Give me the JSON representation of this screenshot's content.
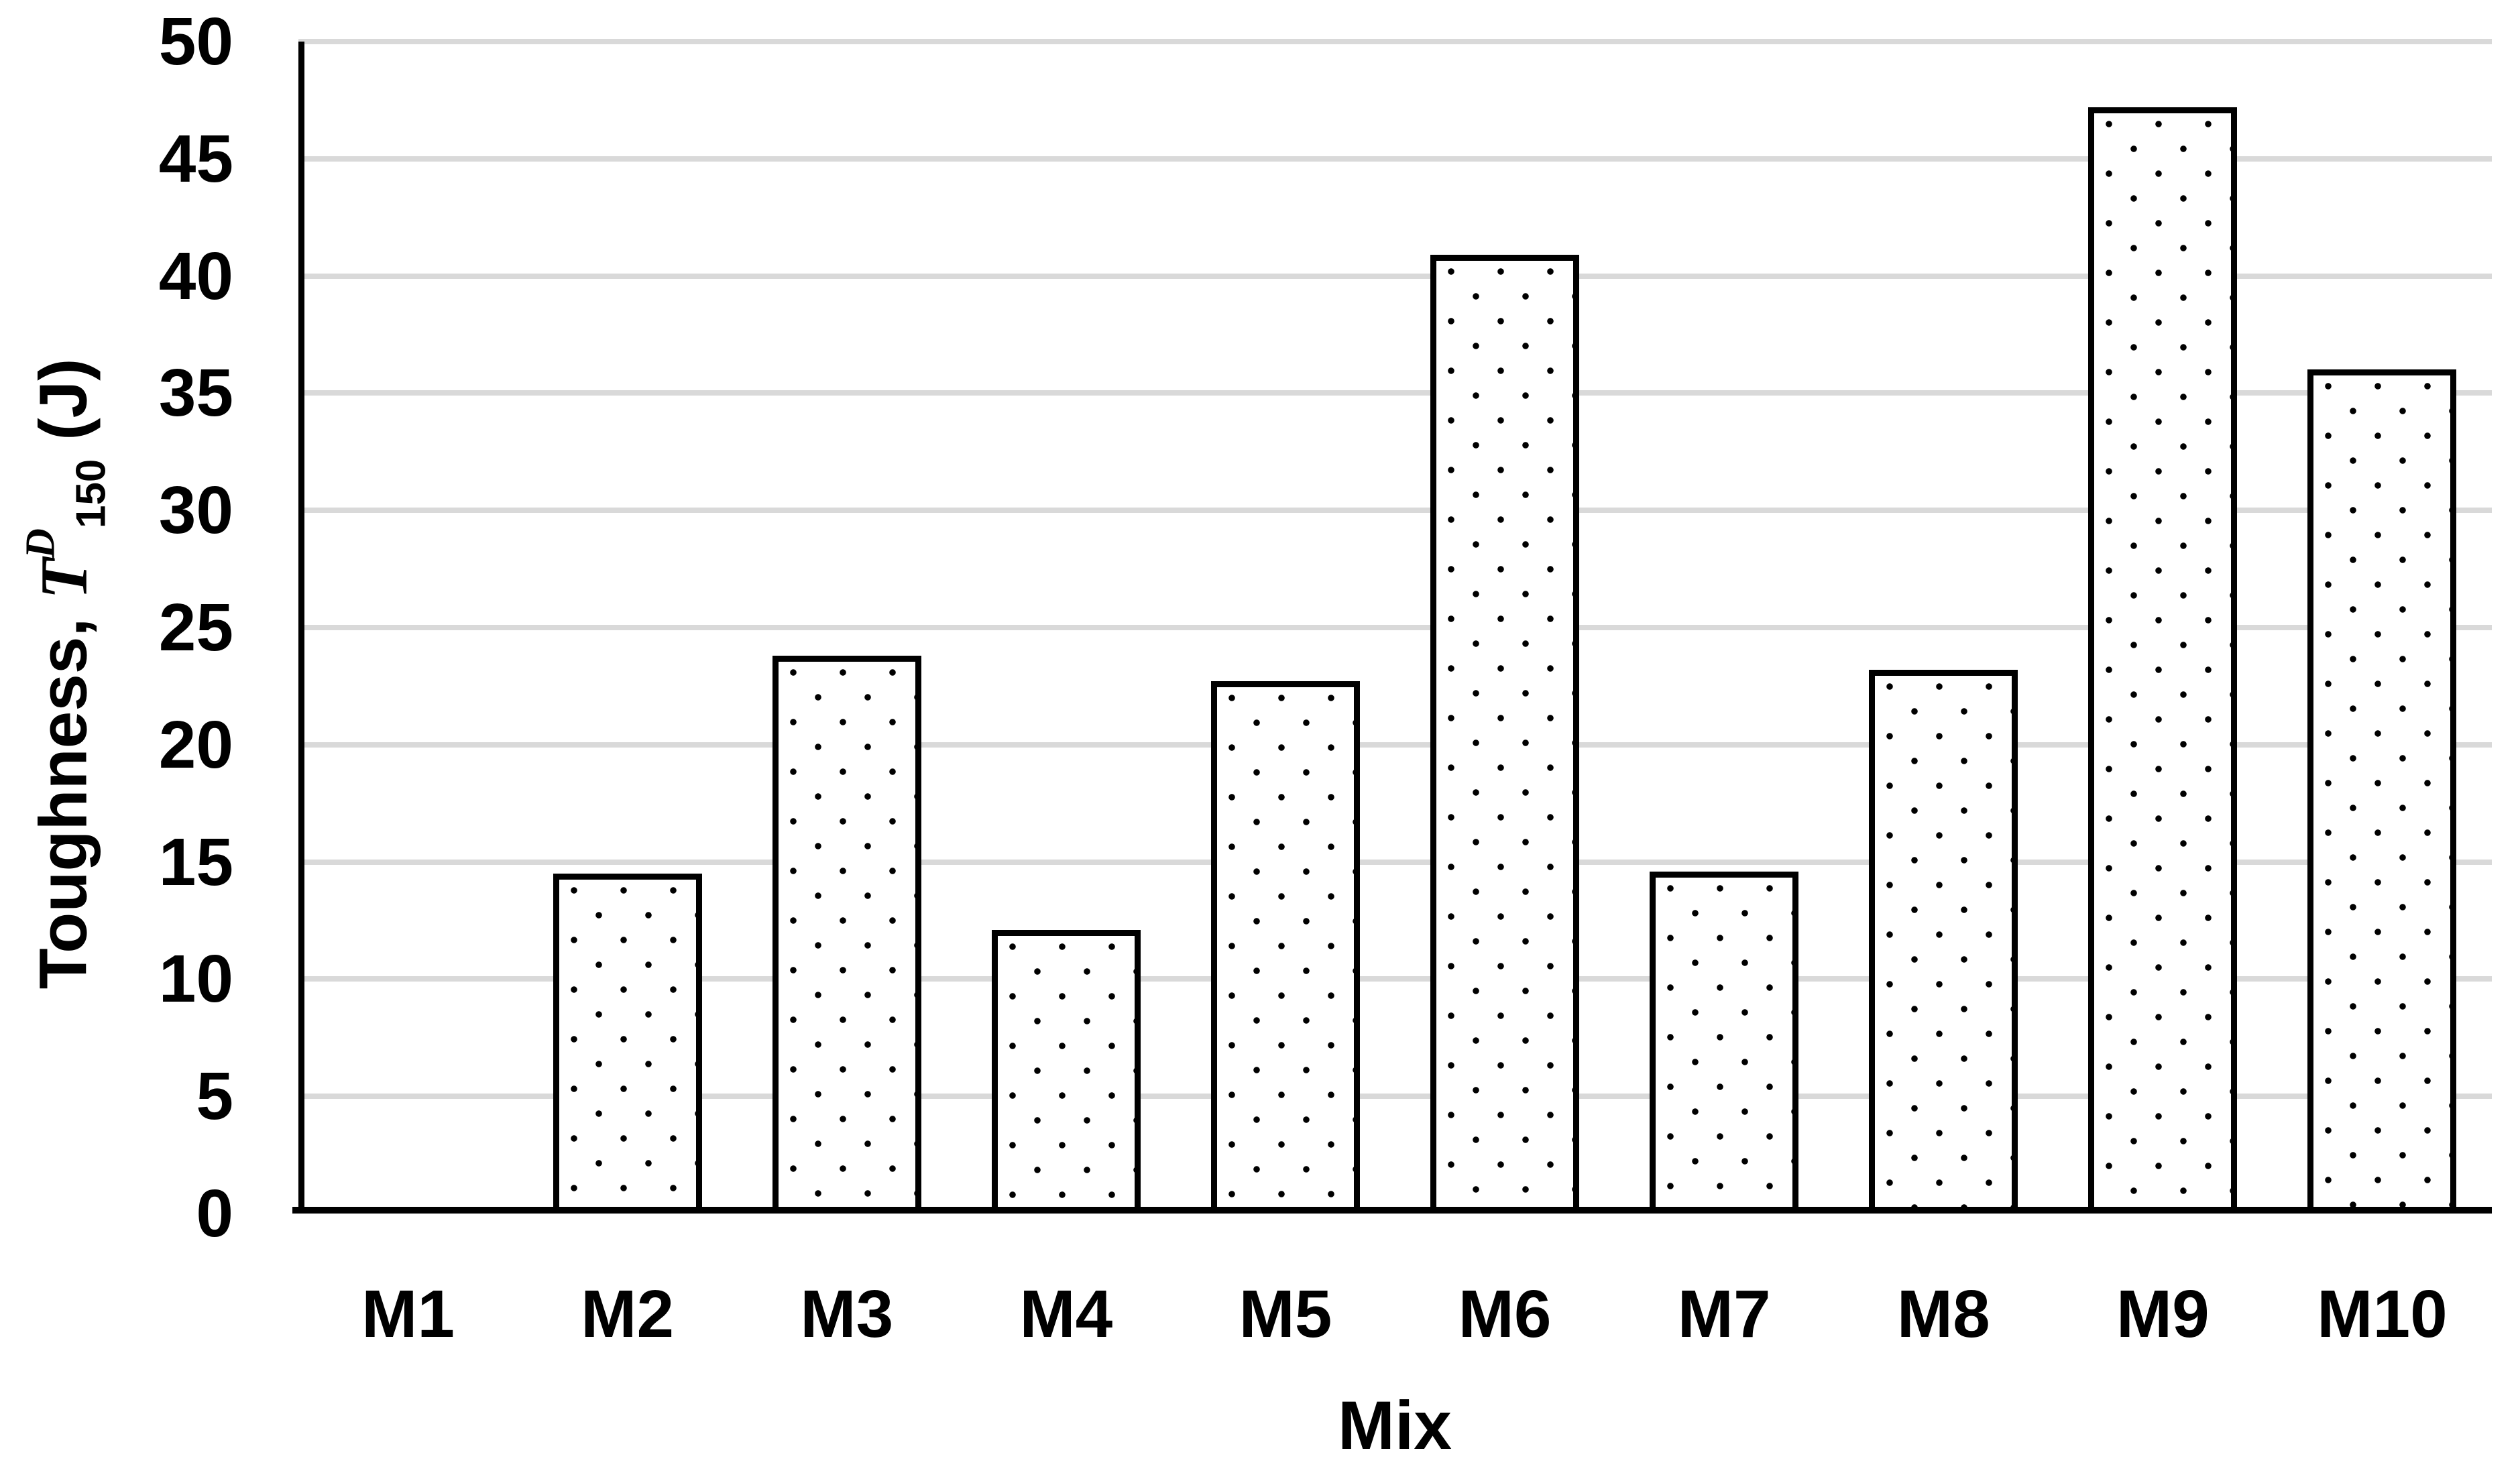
{
  "chart_data": {
    "type": "bar",
    "title": "",
    "categories": [
      "M1",
      "M2",
      "M3",
      "M4",
      "M5",
      "M6",
      "M7",
      "M8",
      "M9",
      "M10"
    ],
    "values": [
      0,
      14.5,
      23.8,
      12.1,
      22.7,
      40.9,
      14.6,
      23.2,
      47.2,
      36
    ],
    "xlabel": "Mix",
    "ylabel": "Toughness, T^D_150 (J)",
    "ylabel_parts": {
      "prefix": "Toughness, ",
      "symbol": "T",
      "superscript": "D",
      "subscript": "150",
      "suffix": " (J)"
    },
    "ylim": [
      0,
      50
    ],
    "yticks": [
      0,
      5,
      10,
      15,
      20,
      25,
      30,
      35,
      40,
      45,
      50
    ],
    "grid": "horizontal",
    "legend": "none",
    "bar_pattern": "small black dots on white, thick black border",
    "colors": {
      "background": "#ffffff",
      "text": "#000000",
      "gridline": "#d9d9d9",
      "axis": "#000000",
      "bar_border": "#000000",
      "bar_fill": "#ffffff",
      "dot": "#000000"
    }
  }
}
